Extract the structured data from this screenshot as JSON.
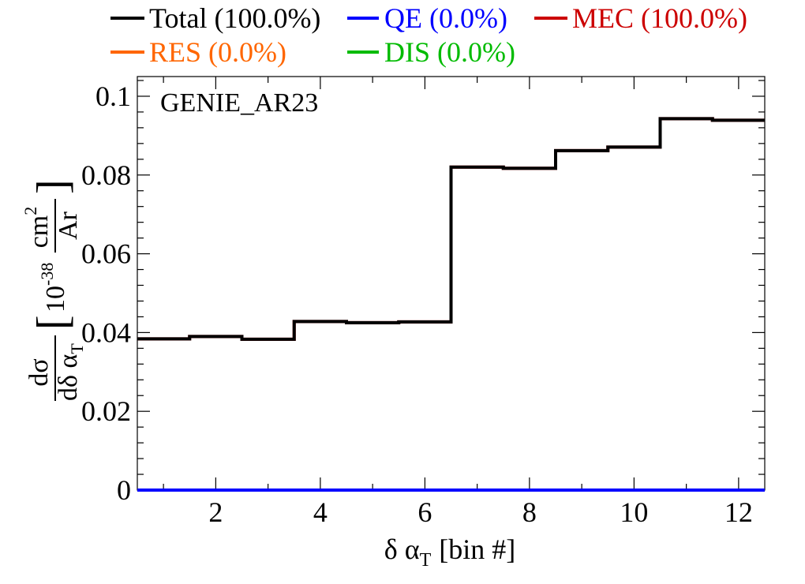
{
  "chart_data": {
    "type": "line",
    "step": true,
    "annotation": "GENIE_AR23",
    "xlabel": {
      "main": "δ α",
      "sub": "T",
      "unit": "[bin #]"
    },
    "ylabel": {
      "num": "dσ",
      "den_main": "dδ α",
      "den_sub": "T",
      "unit_base": "10",
      "unit_exp": "-38",
      "unit_num_main": "cm",
      "unit_num_exp": "2",
      "unit_den": "Ar"
    },
    "xlim": [
      0.5,
      12.5
    ],
    "ylim": [
      0,
      0.105
    ],
    "xticks": [
      2,
      4,
      6,
      8,
      10,
      12
    ],
    "yticks": [
      0,
      0.02,
      0.04,
      0.06,
      0.08,
      0.1
    ],
    "ytick_labels": [
      "0",
      "0.02",
      "0.04",
      "0.06",
      "0.08",
      "0.1"
    ],
    "grid": false,
    "legend_position": "top",
    "bins": [
      1,
      2,
      3,
      4,
      5,
      6,
      7,
      8,
      9,
      10,
      11,
      12
    ],
    "series": [
      {
        "name": "Total (100.0%)",
        "color": "#000000",
        "values": [
          0.0384,
          0.039,
          0.0383,
          0.0428,
          0.0425,
          0.0427,
          0.082,
          0.0817,
          0.0862,
          0.0871,
          0.0943,
          0.0939
        ]
      },
      {
        "name": "QE (0.0%)",
        "color": "#0000ff",
        "values": [
          0,
          0,
          0,
          0,
          0,
          0,
          0,
          0,
          0,
          0,
          0,
          0
        ]
      },
      {
        "name": "MEC (100.0%)",
        "color": "#cc0000",
        "values": [
          0.0384,
          0.039,
          0.0383,
          0.0428,
          0.0425,
          0.0427,
          0.082,
          0.0817,
          0.0862,
          0.0871,
          0.0943,
          0.0939
        ]
      },
      {
        "name": "RES (0.0%)",
        "color": "#ff6600",
        "values": [
          0,
          0,
          0,
          0,
          0,
          0,
          0,
          0,
          0,
          0,
          0,
          0
        ]
      },
      {
        "name": "DIS (0.0%)",
        "color": "#00bb00",
        "values": [
          0,
          0,
          0,
          0,
          0,
          0,
          0,
          0,
          0,
          0,
          0,
          0
        ]
      }
    ],
    "draw_order": [
      4,
      3,
      1,
      2,
      0
    ]
  }
}
